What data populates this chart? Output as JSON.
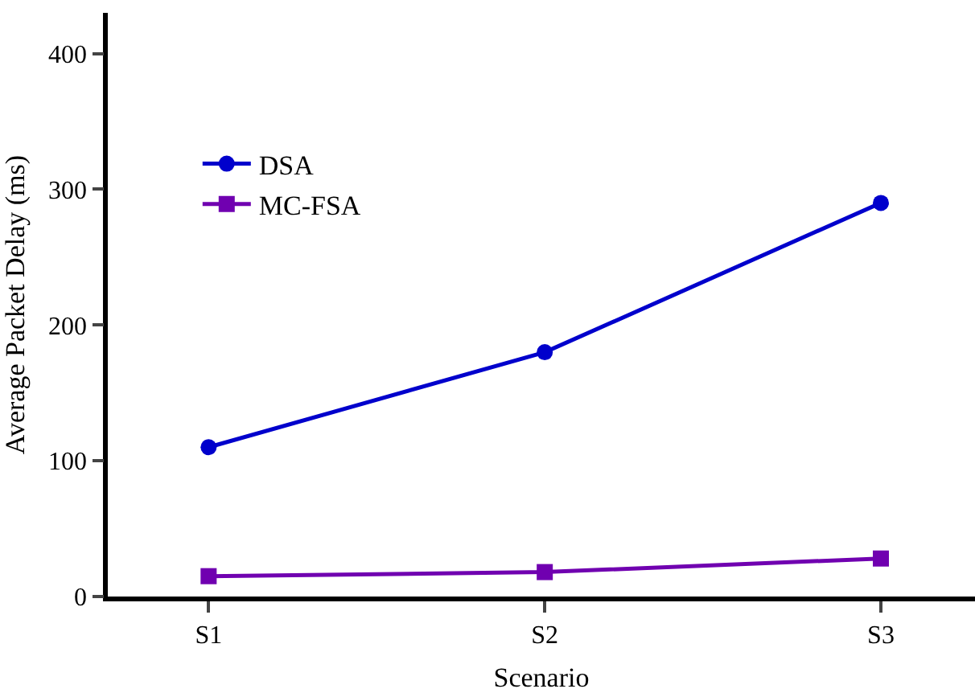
{
  "chart_data": {
    "type": "line",
    "xlabel": "Scenario",
    "ylabel": "Average Packet Delay (ms)",
    "categories": [
      "S1",
      "S2",
      "S3"
    ],
    "series": [
      {
        "name": "DSA",
        "color": "#0000cc",
        "marker": "circle",
        "values": [
          110,
          180,
          290
        ]
      },
      {
        "name": "MC-FSA",
        "color": "#7000b0",
        "marker": "square",
        "values": [
          15,
          18,
          28
        ]
      }
    ],
    "ylim": [
      0,
      430
    ],
    "yticks": [
      0,
      100,
      200,
      300,
      400
    ],
    "legend": "top left",
    "line_style": "solid"
  }
}
